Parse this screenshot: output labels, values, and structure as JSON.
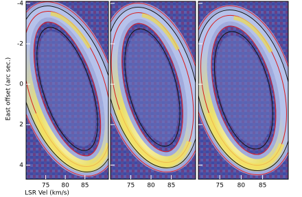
{
  "chart_data": [
    {
      "type": "image",
      "xlabel": "LSR Vel (km/s)",
      "ylabel": "East offset (arc sec.)",
      "xlim": [
        70,
        91
      ],
      "xticks": [
        75,
        80,
        85
      ],
      "ylim": [
        -4.1,
        4.7
      ],
      "yticks": [
        -4,
        -2,
        0,
        2,
        4
      ]
    },
    {
      "type": "image",
      "xlim": [
        70,
        91
      ],
      "xticks": [
        75,
        80,
        85
      ],
      "ylim": [
        -4.1,
        4.7
      ]
    },
    {
      "type": "image",
      "xlim": [
        70,
        91
      ],
      "xticks": [
        75,
        80,
        85
      ],
      "ylim": [
        -4.1,
        4.7
      ]
    }
  ]
}
